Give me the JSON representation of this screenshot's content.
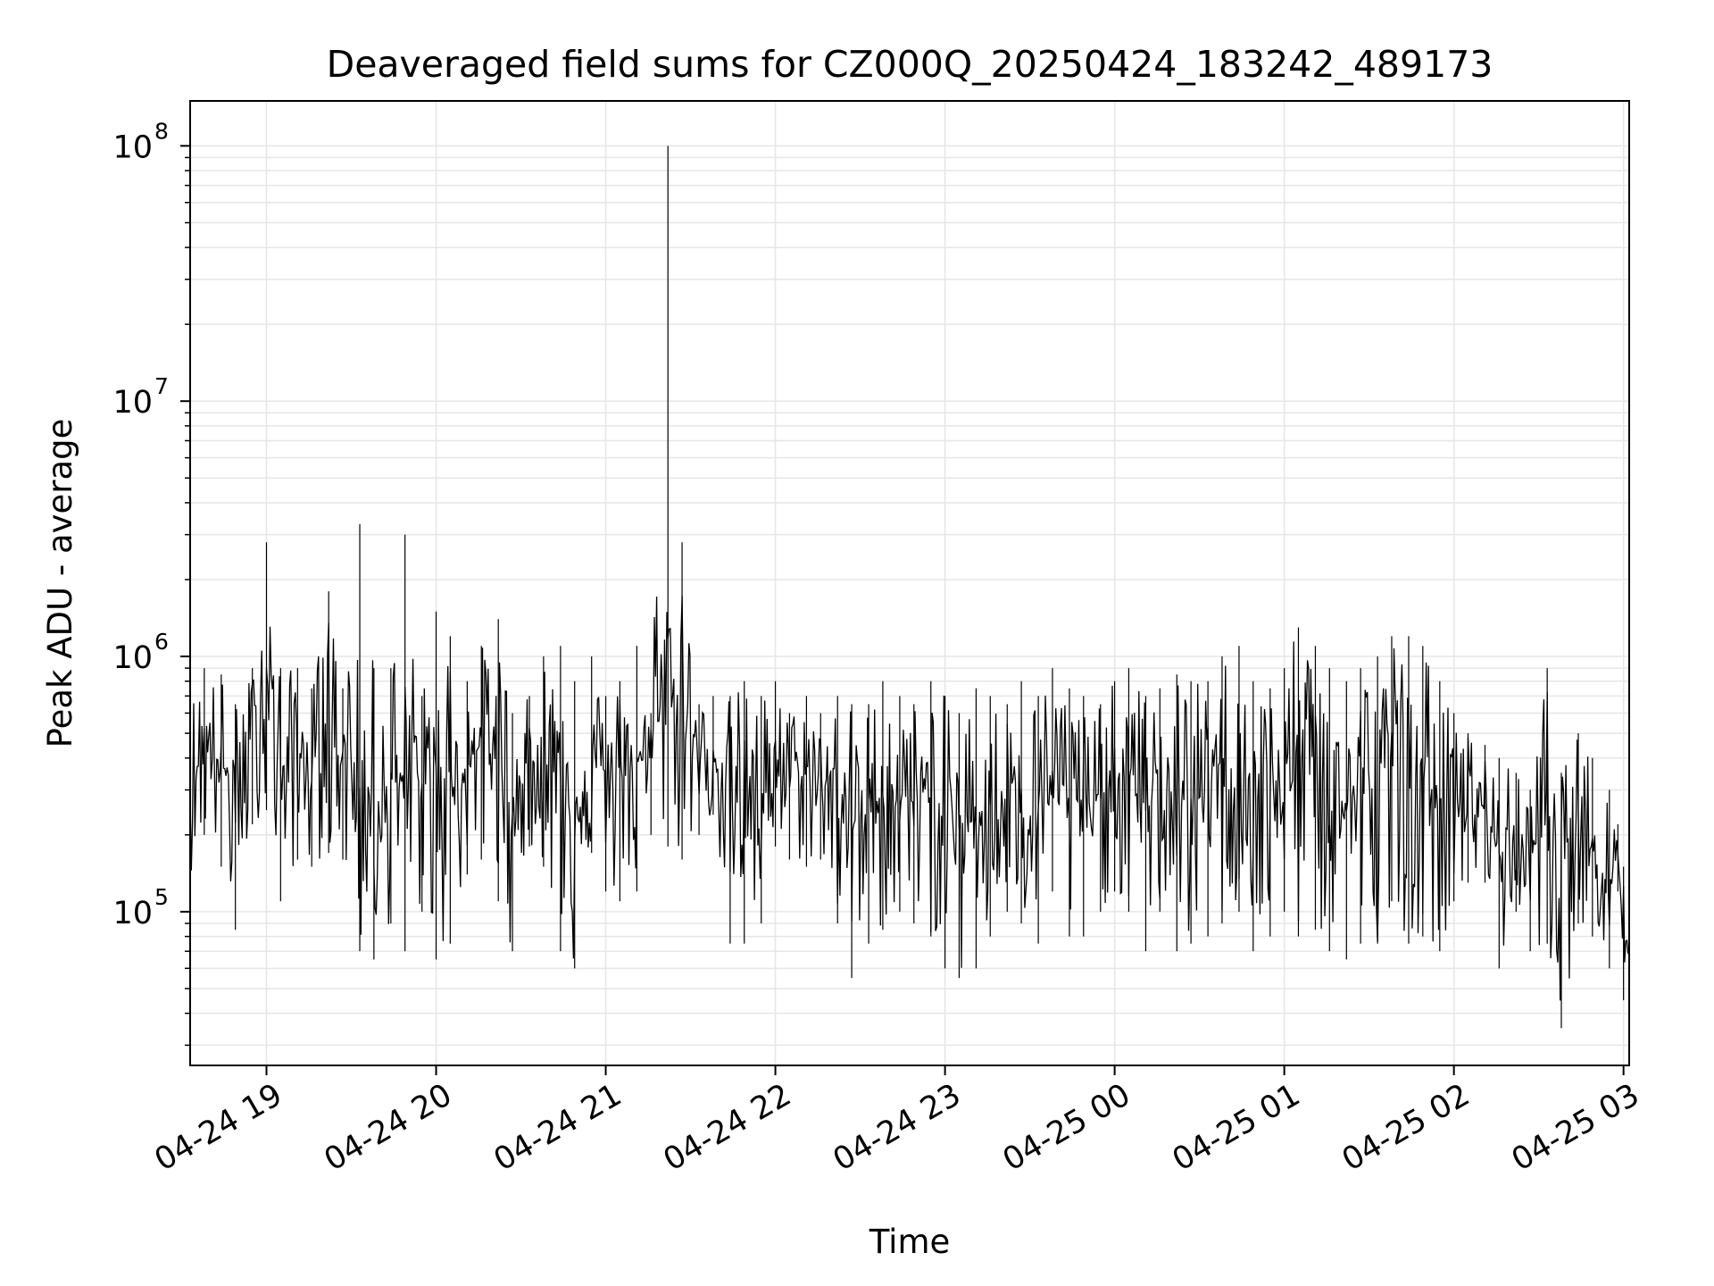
{
  "chart_data": {
    "type": "line",
    "title": "Deaveraged field sums for CZ000Q_20250424_183242_489173",
    "xlabel": "Time",
    "ylabel": "Peak ADU - average",
    "yscale": "log",
    "grid": true,
    "legend": "none",
    "xlim": [
      "2025-04-24 18:33",
      "2025-04-25 03:02"
    ],
    "ylim": [
      25000,
      150000000
    ],
    "x_ticks": [
      {
        "value": "2025-04-24 19:00",
        "label": "04-24 19"
      },
      {
        "value": "2025-04-24 20:00",
        "label": "04-24 20"
      },
      {
        "value": "2025-04-24 21:00",
        "label": "04-24 21"
      },
      {
        "value": "2025-04-24 22:00",
        "label": "04-24 22"
      },
      {
        "value": "2025-04-24 23:00",
        "label": "04-24 23"
      },
      {
        "value": "2025-04-25 00:00",
        "label": "04-25 00"
      },
      {
        "value": "2025-04-25 01:00",
        "label": "04-25 01"
      },
      {
        "value": "2025-04-25 02:00",
        "label": "04-25 02"
      },
      {
        "value": "2025-04-25 03:00",
        "label": "04-25 03"
      }
    ],
    "y_ticks": [
      {
        "value": 100000,
        "base": "10",
        "exp": "5"
      },
      {
        "value": 1000000,
        "base": "10",
        "exp": "6"
      },
      {
        "value": 10000000,
        "base": "10",
        "exp": "7"
      },
      {
        "value": 100000000,
        "base": "10",
        "exp": "8"
      }
    ],
    "line_color": "#000000",
    "series": [
      {
        "x": [
          "2025-04-24 18:33",
          "2025-04-24 18:38",
          "2025-04-24 18:44",
          "2025-04-24 18:49",
          "2025-04-24 18:55",
          "2025-04-24 19:00",
          "2025-04-24 19:05",
          "2025-04-24 19:11",
          "2025-04-24 19:16",
          "2025-04-24 19:22",
          "2025-04-24 19:27",
          "2025-04-24 19:33",
          "2025-04-24 19:38",
          "2025-04-24 19:44",
          "2025-04-24 19:49",
          "2025-04-24 19:55",
          "2025-04-24 20:00",
          "2025-04-24 20:05",
          "2025-04-24 20:11",
          "2025-04-24 20:16",
          "2025-04-24 20:22",
          "2025-04-24 20:27",
          "2025-04-24 20:33",
          "2025-04-24 20:38",
          "2025-04-24 20:44",
          "2025-04-24 20:49",
          "2025-04-24 20:55",
          "2025-04-24 21:00",
          "2025-04-24 21:05",
          "2025-04-24 21:11",
          "2025-04-24 21:16",
          "2025-04-24 21:22",
          "2025-04-24 21:27",
          "2025-04-24 21:33",
          "2025-04-24 21:38",
          "2025-04-24 21:44",
          "2025-04-24 21:49",
          "2025-04-24 21:55",
          "2025-04-24 22:00",
          "2025-04-24 22:05",
          "2025-04-24 22:11",
          "2025-04-24 22:16",
          "2025-04-24 22:22",
          "2025-04-24 22:27",
          "2025-04-24 22:33",
          "2025-04-24 22:38",
          "2025-04-24 22:44",
          "2025-04-24 22:49",
          "2025-04-24 22:55",
          "2025-04-24 23:00",
          "2025-04-24 23:05",
          "2025-04-24 23:11",
          "2025-04-24 23:16",
          "2025-04-24 23:22",
          "2025-04-24 23:27",
          "2025-04-24 23:33",
          "2025-04-24 23:38",
          "2025-04-24 23:44",
          "2025-04-24 23:49",
          "2025-04-24 23:55",
          "2025-04-25 00:00",
          "2025-04-25 00:05",
          "2025-04-25 00:11",
          "2025-04-25 00:16",
          "2025-04-25 00:22",
          "2025-04-25 00:27",
          "2025-04-25 00:33",
          "2025-04-25 00:38",
          "2025-04-25 00:44",
          "2025-04-25 00:49",
          "2025-04-25 00:55",
          "2025-04-25 01:00",
          "2025-04-25 01:05",
          "2025-04-25 01:11",
          "2025-04-25 01:16",
          "2025-04-25 01:22",
          "2025-04-25 01:27",
          "2025-04-25 01:33",
          "2025-04-25 01:38",
          "2025-04-25 01:44",
          "2025-04-25 01:49",
          "2025-04-25 01:55",
          "2025-04-25 02:00",
          "2025-04-25 02:05",
          "2025-04-25 02:11",
          "2025-04-25 02:16",
          "2025-04-25 02:22",
          "2025-04-25 02:27",
          "2025-04-25 02:33",
          "2025-04-25 02:38",
          "2025-04-25 02:44",
          "2025-04-25 02:49",
          "2025-04-25 02:55",
          "2025-04-25 02:58",
          "2025-04-25 03:00",
          "2025-04-25 03:02"
        ],
        "lo": [
          140000,
          200000,
          150000,
          85000,
          220000,
          250000,
          110000,
          160000,
          150000,
          170000,
          160000,
          70000,
          65000,
          90000,
          70000,
          100000,
          65000,
          75000,
          140000,
          160000,
          110000,
          70000,
          180000,
          150000,
          70000,
          60000,
          170000,
          120000,
          110000,
          120000,
          200000,
          180000,
          160000,
          200000,
          240000,
          75000,
          75000,
          90000,
          180000,
          160000,
          150000,
          160000,
          90000,
          55000,
          75000,
          85000,
          100000,
          90000,
          80000,
          60000,
          55000,
          60000,
          80000,
          100000,
          90000,
          75000,
          120000,
          80000,
          80000,
          100000,
          120000,
          100000,
          70000,
          100000,
          70000,
          75000,
          80000,
          90000,
          100000,
          70000,
          80000,
          100000,
          80000,
          85000,
          70000,
          65000,
          75000,
          75000,
          110000,
          75000,
          80000,
          70000,
          110000,
          130000,
          130000,
          60000,
          100000,
          70000,
          75000,
          35000,
          90000,
          80000,
          60000,
          120000,
          45000,
          42000
        ],
        "hi": [
          700000,
          900000,
          850000,
          650000,
          900000,
          2800000,
          900000,
          900000,
          750000,
          1800000,
          750000,
          3300000,
          900000,
          900000,
          3000000,
          700000,
          1500000,
          1200000,
          800000,
          1100000,
          1400000,
          600000,
          700000,
          1000000,
          1100000,
          800000,
          1000000,
          700000,
          800000,
          1100000,
          600000,
          100000000,
          2800000,
          650000,
          700000,
          700000,
          800000,
          700000,
          800000,
          600000,
          700000,
          600000,
          700000,
          650000,
          650000,
          800000,
          700000,
          650000,
          800000,
          700000,
          600000,
          750000,
          700000,
          650000,
          800000,
          700000,
          900000,
          750000,
          700000,
          650000,
          800000,
          900000,
          700000,
          750000,
          850000,
          800000,
          800000,
          1000000,
          1100000,
          800000,
          750000,
          900000,
          1300000,
          1100000,
          900000,
          800000,
          900000,
          1000000,
          1200000,
          1200000,
          1100000,
          800000,
          600000,
          500000,
          450000,
          400000,
          350000,
          300000,
          900000,
          350000,
          500000,
          400000,
          300000,
          220000,
          150000,
          90000
        ]
      }
    ]
  }
}
